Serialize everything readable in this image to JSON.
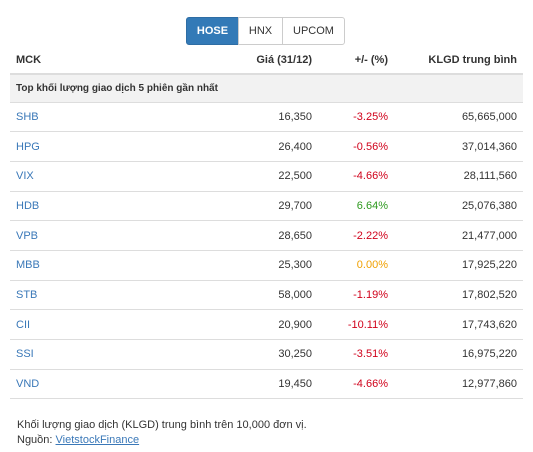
{
  "tabs": [
    {
      "label": "HOSE",
      "active": true
    },
    {
      "label": "HNX",
      "active": false
    },
    {
      "label": "UPCOM",
      "active": false
    }
  ],
  "table": {
    "headers": {
      "mck": "MCK",
      "price": "Giá (31/12)",
      "change": "+/- (%)",
      "volume": "KLGD trung bình"
    },
    "group_title": "Top khối lượng giao dịch 5 phiên gần nhất",
    "rows": [
      {
        "mck": "SHB",
        "price": "16,350",
        "change": "-3.25%",
        "volume": "65,665,000",
        "dir": "neg"
      },
      {
        "mck": "HPG",
        "price": "26,400",
        "change": "-0.56%",
        "volume": "37,014,360",
        "dir": "neg"
      },
      {
        "mck": "VIX",
        "price": "22,500",
        "change": "-4.66%",
        "volume": "28,111,560",
        "dir": "neg"
      },
      {
        "mck": "HDB",
        "price": "29,700",
        "change": "6.64%",
        "volume": "25,076,380",
        "dir": "pos"
      },
      {
        "mck": "VPB",
        "price": "28,650",
        "change": "-2.22%",
        "volume": "21,477,000",
        "dir": "neg"
      },
      {
        "mck": "MBB",
        "price": "25,300",
        "change": "0.00%",
        "volume": "17,925,220",
        "dir": "ref"
      },
      {
        "mck": "STB",
        "price": "58,000",
        "change": "-1.19%",
        "volume": "17,802,520",
        "dir": "neg"
      },
      {
        "mck": "CII",
        "price": "20,900",
        "change": "-10.11%",
        "volume": "17,743,620",
        "dir": "neg"
      },
      {
        "mck": "SSI",
        "price": "30,250",
        "change": "-3.51%",
        "volume": "16,975,220",
        "dir": "neg"
      },
      {
        "mck": "VND",
        "price": "19,450",
        "change": "-4.66%",
        "volume": "12,977,860",
        "dir": "neg"
      }
    ]
  },
  "footer": {
    "note": "Khối lượng giao dịch (KLGD) trung bình trên 10,000 đơn vị.",
    "source_label": "Nguồn: ",
    "source_link": "VietstockFinance"
  },
  "colors": {
    "accent": "#337ab7",
    "negative": "#d0021b",
    "positive": "#2e9a1f",
    "reference": "#f0a000",
    "link": "#3a78b8"
  }
}
